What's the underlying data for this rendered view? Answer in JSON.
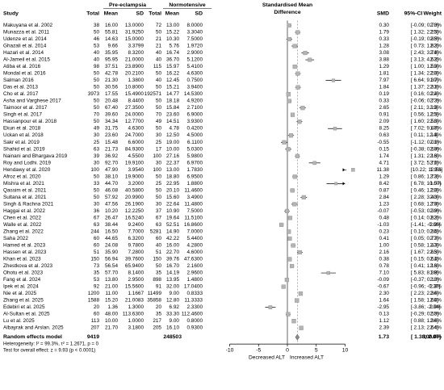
{
  "chart_data": {
    "type": "forest",
    "headers": {
      "group1": "Pre-eclampsia",
      "group2": "Normotensive",
      "study": "Study",
      "total": "Total",
      "mean": "Mean",
      "sd": "SD",
      "smd_title_1": "Standardised Mean",
      "smd_title_2": "Difference",
      "smd": "SMD",
      "ci": "95%-CI",
      "weight": "Weight"
    },
    "xaxis": {
      "ticks": [
        -10,
        -5,
        0,
        5,
        10
      ],
      "range": [
        -10,
        10
      ],
      "left_label": "Decreased ALT",
      "right_label": "Increased ALT"
    },
    "studies": [
      {
        "study": "Makuyana et al. 2002",
        "n1": "38",
        "m1": "16.00",
        "sd1": "13.0000",
        "n2": "72",
        "m2": "13.00",
        "sd2": "8.0000",
        "smd": 0.3,
        "lo": -0.09,
        "hi": 0.7,
        "smd_txt": "0.30",
        "ci_txt": "[-0.09; 0.70]",
        "weight": "2.3%"
      },
      {
        "study": "Munazza et al. 2011",
        "n1": "50",
        "m1": "55.81",
        "sd1": "31.9250",
        "n2": "50",
        "m2": "15.22",
        "sd2": "3.3040",
        "smd": 1.79,
        "lo": 1.32,
        "hi": 2.25,
        "smd_txt": "1.79",
        "ci_txt": "[ 1.32; 2.25]",
        "weight": "2.3%"
      },
      {
        "study": "Udenze et al. 2014",
        "n1": "46",
        "m1": "14.63",
        "sd1": "15.0000",
        "n2": "21",
        "m2": "10.30",
        "sd2": "7.5000",
        "smd": 0.33,
        "lo": -0.19,
        "hi": 0.85,
        "smd_txt": "0.33",
        "ci_txt": "[-0.19; 0.85]",
        "weight": "2.3%"
      },
      {
        "study": "Ghazali et al. 2014",
        "n1": "53",
        "m1": "9.66",
        "sd1": "3.3799",
        "n2": "21",
        "m2": "5.76",
        "sd2": "1.9720",
        "smd": 1.28,
        "lo": 0.73,
        "hi": 1.82,
        "smd_txt": "1.28",
        "ci_txt": "[ 0.73; 1.82]",
        "weight": "2.3%"
      },
      {
        "study": "Hazari et al. 2014",
        "n1": "40",
        "m1": "35.95",
        "sd1": "8.3200",
        "n2": "40",
        "m2": "16.74",
        "sd2": "2.9000",
        "smd": 3.08,
        "lo": 2.43,
        "hi": 3.74,
        "smd_txt": "3.08",
        "ci_txt": "[ 2.43; 3.74]",
        "weight": "2.3%"
      },
      {
        "study": "Al-Jameil et al. 2015",
        "n1": "40",
        "m1": "95.95",
        "sd1": "21.0000",
        "n2": "40",
        "m2": "36.70",
        "sd2": "5.1200",
        "smd": 3.88,
        "lo": 3.13,
        "hi": 4.63,
        "smd_txt": "3.88",
        "ci_txt": "[ 3.13; 4.63]",
        "weight": "2.2%"
      },
      {
        "study": "Atiba et al. 2016",
        "n1": "98",
        "m1": "37.51",
        "sd1": "23.8900",
        "n2": "115",
        "m2": "15.97",
        "sd2": "5.4100",
        "smd": 1.29,
        "lo": 1.0,
        "hi": 1.59,
        "smd_txt": "1.29",
        "ci_txt": "[ 1.00; 1.59]",
        "weight": "2.3%"
      },
      {
        "study": "Mondal et al. 2016",
        "n1": "50",
        "m1": "42.78",
        "sd1": "20.2100",
        "n2": "50",
        "m2": "16.22",
        "sd2": "4.6300",
        "smd": 1.81,
        "lo": 1.34,
        "hi": 2.28,
        "smd_txt": "1.81",
        "ci_txt": "[ 1.34; 2.28]",
        "weight": "2.3%"
      },
      {
        "study": "Salman 2016",
        "n1": "50",
        "m1": "21.30",
        "sd1": "1.3800",
        "n2": "40",
        "m2": "12.45",
        "sd2": "0.7500",
        "smd": 7.97,
        "lo": 6.64,
        "hi": 9.3,
        "smd_txt": "7.97",
        "ci_txt": "[ 6.64; 9.30]",
        "weight": "1.7%"
      },
      {
        "study": "Das et al. 2013",
        "n1": "50",
        "m1": "30.56",
        "sd1": "10.8000",
        "n2": "50",
        "m2": "15.21",
        "sd2": "3.9400",
        "smd": 1.84,
        "lo": 1.37,
        "hi": 2.31,
        "smd_txt": "1.84",
        "ci_txt": "[ 1.37; 2.31]",
        "weight": "2.3%"
      },
      {
        "study": "Cho et al. 2017",
        "n1": "3973",
        "m1": "17.55",
        "sd1": "15.4900",
        "n2": "192571",
        "m2": "14.77",
        "sd2": "14.5300",
        "smd": 0.19,
        "lo": 0.16,
        "hi": 0.22,
        "smd_txt": "0.19",
        "ci_txt": "[ 0.16; 0.22]",
        "weight": "2.4%"
      },
      {
        "study": "Asha and Varghese 2017",
        "n1": "50",
        "m1": "20.48",
        "sd1": "8.4400",
        "n2": "50",
        "m2": "18.18",
        "sd2": "4.9200",
        "smd": 0.33,
        "lo": -0.06,
        "hi": 0.73,
        "smd_txt": "0.33",
        "ci_txt": "[-0.06; 0.73]",
        "weight": "2.3%"
      },
      {
        "study": "Taimoor et al. 2017",
        "n1": "50",
        "m1": "67.40",
        "sd1": "27.3500",
        "n2": "50",
        "m2": "15.84",
        "sd2": "2.7100",
        "smd": 2.65,
        "lo": 2.11,
        "hi": 3.19,
        "smd_txt": "2.65",
        "ci_txt": "[ 2.11; 3.19]",
        "weight": "2.3%"
      },
      {
        "study": "Singh et al. 2017",
        "n1": "70",
        "m1": "39.60",
        "sd1": "24.0000",
        "n2": "70",
        "m2": "23.60",
        "sd2": "6.9000",
        "smd": 0.91,
        "lo": 0.56,
        "hi": 1.25,
        "smd_txt": "0.91",
        "ci_txt": "[ 0.56; 1.25]",
        "weight": "2.3%"
      },
      {
        "study": "Hassanpour et al. 2018",
        "n1": "50",
        "m1": "34.34",
        "sd1": "12.7700",
        "n2": "49",
        "m2": "14.51",
        "sd2": "3.9300",
        "smd": 2.09,
        "lo": 1.6,
        "hi": 2.58,
        "smd_txt": "2.09",
        "ci_txt": "[ 1.60; 2.58]",
        "weight": "2.3%"
      },
      {
        "study": "Ekun et al. 2018",
        "n1": "49",
        "m1": "31.75",
        "sd1": "4.6300",
        "n2": "50",
        "m2": "4.78",
        "sd2": "0.4200",
        "smd": 8.25,
        "lo": 7.02,
        "hi": 9.47,
        "smd_txt": "8.25",
        "ci_txt": "[ 7.02; 9.47]",
        "weight": "1.8%"
      },
      {
        "study": "Uckan et al. 2018",
        "n1": "30",
        "m1": "23.60",
        "sd1": "24.7000",
        "n2": "30",
        "m2": "12.50",
        "sd2": "4.5000",
        "smd": 0.63,
        "lo": 0.11,
        "hi": 1.14,
        "smd_txt": "0.63",
        "ci_txt": "[ 0.11; 1.14]",
        "weight": "2.3%"
      },
      {
        "study": "Sakr et al. 2019",
        "n1": "25",
        "m1": "15.48",
        "sd1": "6.6000",
        "n2": "25",
        "m2": "19.00",
        "sd2": "6.1100",
        "smd": -0.55,
        "lo": -1.12,
        "hi": 0.01,
        "smd_txt": "-0.55",
        "ci_txt": "[-1.12; 0.01]",
        "weight": "2.3%"
      },
      {
        "study": "Shahid et al. 2019",
        "n1": "63",
        "m1": "21.73",
        "sd1": "84.9300",
        "n2": "17",
        "m2": "10.00",
        "sd2": "5.0300",
        "smd": 0.15,
        "lo": -0.38,
        "hi": 0.69,
        "smd_txt": "0.15",
        "ci_txt": "[-0.38; 0.69]",
        "weight": "2.3%"
      },
      {
        "study": "Nainani and Bhargava  2019",
        "n1": "39",
        "m1": "36.92",
        "sd1": "4.5500",
        "n2": "100",
        "m2": "27.16",
        "sd2": "5.9800",
        "smd": 1.74,
        "lo": 1.31,
        "hi": 2.16,
        "smd_txt": "1.74",
        "ci_txt": "[ 1.31; 2.16]",
        "weight": "2.3%"
      },
      {
        "study": "Roy and Lodhi. 2019",
        "n1": "30",
        "m1": "92.70",
        "sd1": "19.9100",
        "n2": "30",
        "m2": "22.37",
        "sd2": "6.9700",
        "smd": 4.71,
        "lo": 3.72,
        "hi": 5.71,
        "smd_txt": "4.71",
        "ci_txt": "[ 3.72; 5.71]",
        "weight": "2.0%"
      },
      {
        "study": "Hendawy et al. 2020",
        "n1": "100",
        "m1": "47.90",
        "sd1": "3.9540",
        "n2": "100",
        "m2": "13.00",
        "sd2": "1.7830",
        "smd": 11.38,
        "lo": 10.22,
        "hi": 12.53,
        "smd_txt": "11.38",
        "ci_txt": "[10.22; 12.53]",
        "weight": "1.9%"
      },
      {
        "study": "Afroz et al. 2020",
        "n1": "50",
        "m1": "38.10",
        "sd1": "19.9000",
        "n2": "50",
        "m2": "18.80",
        "sd2": "6.9500",
        "smd": 1.29,
        "lo": 0.86,
        "hi": 1.73,
        "smd_txt": "1.29",
        "ci_txt": "[ 0.86; 1.73]",
        "weight": "2.3%"
      },
      {
        "study": "Mishra et al. 2021",
        "n1": "33",
        "m1": "44.70",
        "sd1": "3.2000",
        "n2": "25",
        "m2": "22.95",
        "sd2": "1.8800",
        "smd": 8.42,
        "lo": 6.78,
        "hi": 10.07,
        "smd_txt": "8.42",
        "ci_txt": "[ 6.78; 10.07]",
        "weight": "1.5%"
      },
      {
        "study": "Qassim et al. 2021",
        "n1": "50",
        "m1": "46.08",
        "sd1": "40.5800",
        "n2": "50",
        "m2": "20.10",
        "sd2": "11.4600",
        "smd": 0.87,
        "lo": 0.46,
        "hi": 1.28,
        "smd_txt": "0.87",
        "ci_txt": "[ 0.46; 1.28]",
        "weight": "2.3%"
      },
      {
        "study": "Sultana et al. 2021",
        "n1": "50",
        "m1": "57.92",
        "sd1": "20.9900",
        "n2": "50",
        "m2": "15.60",
        "sd2": "3.4900",
        "smd": 2.84,
        "lo": 2.28,
        "hi": 3.4,
        "smd_txt": "2.84",
        "ci_txt": "[ 2.28; 3.40]",
        "weight": "2.3%"
      },
      {
        "study": "Singh & Rachna  2021",
        "n1": "30",
        "m1": "47.56",
        "sd1": "26.1900",
        "n2": "30",
        "m2": "22.64",
        "sd2": "11.4800",
        "smd": 1.23,
        "lo": 0.68,
        "hi": 1.79,
        "smd_txt": "1.23",
        "ci_txt": "[ 0.68; 1.79]",
        "weight": "2.3%"
      },
      {
        "study": "Haggai et al. 2022",
        "n1": "36",
        "m1": "10.20",
        "sd1": "12.2250",
        "n2": "37",
        "m2": "10.90",
        "sd2": "7.5000",
        "smd": -0.07,
        "lo": -0.53,
        "hi": 0.39,
        "smd_txt": "-0.07",
        "ci_txt": "[-0.53; 0.39]",
        "weight": "2.3%"
      },
      {
        "study": "Chen et al. 2022",
        "n1": "67",
        "m1": "26.47",
        "sd1": "16.5240",
        "n2": "67",
        "m2": "19.64",
        "sd2": "11.5100",
        "smd": 0.48,
        "lo": 0.14,
        "hi": 0.82,
        "smd_txt": "0.48",
        "ci_txt": "[ 0.14; 0.82]",
        "weight": "2.3%"
      },
      {
        "study": "Walle et al. 2022",
        "n1": "63",
        "m1": "38.44",
        "sd1": "9.2400",
        "n2": "63",
        "m2": "52.51",
        "sd2": "16.8600",
        "smd": -1.03,
        "lo": -1.41,
        "hi": -0.66,
        "smd_txt": "-1.03",
        "ci_txt": "[-1.41; -0.66]",
        "weight": "2.3%"
      },
      {
        "study": "Zhang et al. 2022",
        "n1": "244",
        "m1": "16.50",
        "sd1": "7.7000",
        "n2": "5281",
        "m2": "14.90",
        "sd2": "7.0000",
        "smd": 0.23,
        "lo": 0.1,
        "hi": 0.35,
        "smd_txt": "0.23",
        "ci_txt": "[ 0.10; 0.35]",
        "weight": "2.4%"
      },
      {
        "study": "Saha 2022",
        "n1": "60",
        "m1": "44.65",
        "sd1": "6.3200",
        "n2": "60",
        "m2": "42.22",
        "sd2": "5.4400",
        "smd": 0.41,
        "lo": 0.05,
        "hi": 0.77,
        "smd_txt": "0.41",
        "ci_txt": "[ 0.05; 0.77]",
        "weight": "2.3%"
      },
      {
        "study": "Hamed et al. 2023",
        "n1": "60",
        "m1": "24.08",
        "sd1": "9.7800",
        "n2": "40",
        "m2": "16.00",
        "sd2": "4.2800",
        "smd": 1.0,
        "lo": 0.58,
        "hi": 1.43,
        "smd_txt": "1.00",
        "ci_txt": "[ 0.58; 1.43]",
        "weight": "2.3%"
      },
      {
        "study": "Hassen et al. 2023",
        "n1": "51",
        "m1": "35.90",
        "sd1": "7.2800",
        "n2": "51",
        "m2": "22.70",
        "sd2": "4.6000",
        "smd": 2.16,
        "lo": 1.67,
        "hi": 2.65,
        "smd_txt": "2.16",
        "ci_txt": "[ 1.67; 2.65]",
        "weight": "2.3%"
      },
      {
        "study": "Khan et al. 2023",
        "n1": "150",
        "m1": "56.94",
        "sd1": "39.7600",
        "n2": "150",
        "m2": "39.76",
        "sd2": "47.6300",
        "smd": 0.38,
        "lo": 0.15,
        "hi": 0.61,
        "smd_txt": "0.38",
        "ci_txt": "[ 0.15; 0.61]",
        "weight": "2.4%"
      },
      {
        "study": "Zhestkova et al. 2023",
        "n1": "73",
        "m1": "56.54",
        "sd1": "65.9400",
        "n2": "50",
        "m2": "16.70",
        "sd2": "2.1600",
        "smd": 0.78,
        "lo": 0.41,
        "hi": 1.16,
        "smd_txt": "0.78",
        "ci_txt": "[ 0.41; 1.16]",
        "weight": "2.3%"
      },
      {
        "study": "Ohotu et al. 2023",
        "n1": "35",
        "m1": "57.70",
        "sd1": "8.1400",
        "n2": "35",
        "m2": "14.19",
        "sd2": "2.9600",
        "smd": 7.1,
        "lo": 5.83,
        "hi": 8.39,
        "smd_txt": "7.10",
        "ci_txt": "[ 5.83; 8.39]",
        "weight": "1.8%"
      },
      {
        "study": "Fang et al. 2024",
        "n1": "53",
        "m1": "13.80",
        "sd1": "2.9500",
        "n2": "898",
        "m2": "13.95",
        "sd2": "1.4800",
        "smd": -0.09,
        "lo": -0.37,
        "hi": 0.18,
        "smd_txt": "-0.09",
        "ci_txt": "[-0.37; 0.18]",
        "weight": "2.3%"
      },
      {
        "study": "Ipek et al. 2024",
        "n1": "92",
        "m1": "21.00",
        "sd1": "15.5600",
        "n2": "91",
        "m2": "32.00",
        "sd2": "17.0400",
        "smd": -0.67,
        "lo": -0.96,
        "hi": -0.37,
        "smd_txt": "-0.67",
        "ci_txt": "[-0.96; -0.37]",
        "weight": "2.3%"
      },
      {
        "study": "Nie et al. 2025",
        "n1": "1200",
        "m1": "11.00",
        "sd1": "1.1667",
        "n2": "11499",
        "m2": "9.00",
        "sd2": "0.8333",
        "smd": 2.3,
        "lo": 2.23,
        "hi": 2.36,
        "smd_txt": "2.30",
        "ci_txt": "[ 2.23; 2.36]",
        "weight": "2.4%"
      },
      {
        "study": "Zhang et al. 2025",
        "n1": "1588",
        "m1": "15.20",
        "sd1": "21.0083",
        "n2": "35858",
        "m2": "12.80",
        "sd2": "11.3333",
        "smd": 1.64,
        "lo": 1.58,
        "hi": 1.69,
        "smd_txt": "1.64",
        "ci_txt": "[ 1.58; 1.69]",
        "weight": "2.4%"
      },
      {
        "study": "Edebiri et al. 2025",
        "n1": "20",
        "m1": "1.36",
        "sd1": "1.3000",
        "n2": "20",
        "m2": "6.92",
        "sd2": "2.3300",
        "smd": -2.95,
        "lo": -3.86,
        "hi": -2.04,
        "smd_txt": "-2.95",
        "ci_txt": "[-3.86; -2.04]",
        "weight": "2.0%"
      },
      {
        "study": "Al-Sultan et al. 2025",
        "n1": "60",
        "m1": "48.00",
        "sd1": "113.6300",
        "n2": "35",
        "m2": "33.30",
        "sd2": "112.4600",
        "smd": 0.13,
        "lo": -0.29,
        "hi": 0.55,
        "smd_txt": "0.13",
        "ci_txt": "[-0.29; 0.55]",
        "weight": "2.3%"
      },
      {
        "study": "Lu et al. 2025",
        "n1": "113",
        "m1": "10.00",
        "sd1": "1.0000",
        "n2": "217",
        "m2": "9.00",
        "sd2": "0.8000",
        "smd": 1.12,
        "lo": 0.88,
        "hi": 1.36,
        "smd_txt": "1.12",
        "ci_txt": "[ 0.88; 1.36]",
        "weight": "2.4%"
      },
      {
        "study": "Albayrak and Arslan. 2025",
        "n1": "207",
        "m1": "21.70",
        "sd1": "3.1800",
        "n2": "205",
        "m2": "16.10",
        "sd2": "0.9300",
        "smd": 2.39,
        "lo": 2.13,
        "hi": 2.64,
        "smd_txt": "2.39",
        "ci_txt": "[ 2.13; 2.64]",
        "weight": "2.4%"
      }
    ],
    "summary": {
      "label": "Random effects model",
      "n1": "9419",
      "n2": "248503",
      "smd": 1.73,
      "lo": 1.38,
      "hi": 2.07,
      "smd_txt": "1.73",
      "ci_txt": "[ 1.38; 2.07]",
      "weight": "100.0%"
    },
    "heterogeneity": "Heterogeneity: I² = 99.3%, τ² = 1.2671, p = 0",
    "overall_test": "Test for overall effect: z = 9.93 (p < 0.0001)"
  }
}
